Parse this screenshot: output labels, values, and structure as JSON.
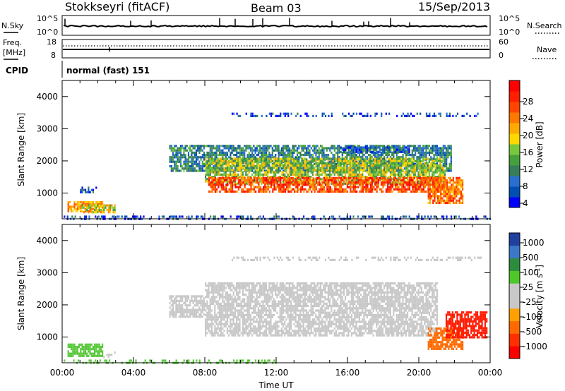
{
  "header": {
    "station": "Stokkseyri (fitACF)",
    "beam": "Beam 03",
    "date": "15/Sep/2013"
  },
  "top_panels": {
    "nsky_label": "N.Sky",
    "nsky_ticks": [
      "10^5",
      "10^0"
    ],
    "nsky_right_ticks": [
      "10^5",
      "10^0"
    ],
    "nsearch_label": "N.Search",
    "freq_label_1": "Freq.",
    "freq_label_2": "[MHz]",
    "freq_ticks": [
      "18",
      "8"
    ],
    "nave_ticks": [
      "60",
      "0"
    ],
    "nave_label": "Nave",
    "cpid_label": "CPID",
    "cpid_text": "normal (fast) 151"
  },
  "colorbars": {
    "power": {
      "label": "Power [dB]",
      "ticks": [
        "28",
        "24",
        "20",
        "16",
        "12",
        "8",
        "4"
      ],
      "colors": [
        "#0000ff",
        "#0050b4",
        "#2a6fd0",
        "#377d5a",
        "#46a03c",
        "#78c83c",
        "#ffd700",
        "#ffaa00",
        "#ff7800",
        "#ff4600",
        "#ff1e00",
        "#ff0000"
      ]
    },
    "velocity": {
      "label": "Velocity [m s",
      "label_sup": "-1",
      "label_end": "]",
      "ticks": [
        "1000",
        "500",
        "100",
        "25",
        "-25",
        "-100",
        "-500",
        "-1000"
      ],
      "colors": [
        "#ff0000",
        "#ff3000",
        "#ff6a00",
        "#ffa000",
        "#c8c8c8",
        "#c8c8c8",
        "#4ec828",
        "#2d8c3c",
        "#3c78c8",
        "#2040a0"
      ]
    }
  },
  "chart_data": [
    {
      "type": "heatmap",
      "quantity": "Power",
      "ylabel": "Slant Range [km]",
      "ylim": [
        200,
        4500
      ],
      "yticks": [
        "4000",
        "3000",
        "2000",
        "1000"
      ],
      "xlim": [
        "00:00",
        "24:00"
      ],
      "bands": [
        {
          "t0": 0.3,
          "t1": 2.3,
          "r0": 400,
          "r1": 750,
          "power_db": 22
        },
        {
          "t0": 1.0,
          "t1": 3.0,
          "r0": 400,
          "r1": 650,
          "power_db": 18
        },
        {
          "t0": 1.0,
          "t1": 2.0,
          "r0": 1050,
          "r1": 1200,
          "power_db": 8
        },
        {
          "t0": 6.0,
          "t1": 21.8,
          "r0": 1700,
          "r1": 2500,
          "power_db": 10
        },
        {
          "t0": 8.0,
          "t1": 21.5,
          "r0": 1300,
          "r1": 2100,
          "power_db": 16
        },
        {
          "t0": 8.2,
          "t1": 21.5,
          "r0": 1050,
          "r1": 1500,
          "power_db": 26
        },
        {
          "t0": 15.5,
          "t1": 19.5,
          "r0": 2250,
          "r1": 2450,
          "power_db": 8
        },
        {
          "t0": 20.5,
          "t1": 22.5,
          "r0": 700,
          "r1": 1500,
          "power_db": 24
        },
        {
          "t0": 9.5,
          "t1": 23.5,
          "r0": 3400,
          "r1": 3500,
          "power_db": 6
        },
        {
          "t0": 0,
          "t1": 24,
          "r0": 200,
          "r1": 300,
          "power_db": 6
        }
      ]
    },
    {
      "type": "heatmap",
      "quantity": "Velocity",
      "ylabel": "Slant Range [km]",
      "ylim": [
        200,
        4500
      ],
      "yticks": [
        "4000",
        "3000",
        "2000",
        "1000"
      ],
      "xlabel": "Time UT",
      "xticks": [
        "00:00",
        "04:00",
        "08:00",
        "12:00",
        "16:00",
        "20:00",
        "00:00"
      ],
      "bands": [
        {
          "t0": 0.3,
          "t1": 2.3,
          "r0": 400,
          "r1": 800,
          "velocity": 100
        },
        {
          "t0": 2.3,
          "t1": 3.0,
          "r0": 400,
          "r1": 550,
          "velocity": 0
        },
        {
          "t0": 6.0,
          "t1": 8.0,
          "r0": 1600,
          "r1": 2300,
          "velocity": 0
        },
        {
          "t0": 8.0,
          "t1": 21.0,
          "r0": 1050,
          "r1": 2700,
          "velocity": 0
        },
        {
          "t0": 20.5,
          "t1": 22.5,
          "r0": 600,
          "r1": 1300,
          "velocity": -500
        },
        {
          "t0": 21.5,
          "t1": 23.8,
          "r0": 1000,
          "r1": 1800,
          "velocity": -1000
        },
        {
          "t0": 9.5,
          "t1": 23.5,
          "r0": 3400,
          "r1": 3500,
          "velocity": 0
        },
        {
          "t0": 0,
          "t1": 12,
          "r0": 200,
          "r1": 300,
          "velocity": 100
        }
      ]
    }
  ]
}
